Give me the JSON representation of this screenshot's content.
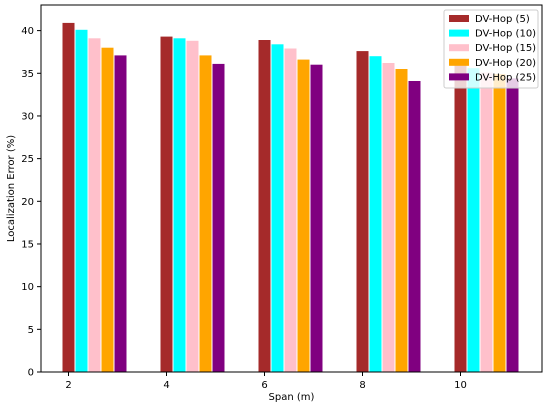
{
  "chart_data": {
    "type": "bar",
    "xlabel": "Span (m)",
    "ylabel": "Localization Error (%)",
    "categories": [
      "2",
      "4",
      "6",
      "8",
      "10"
    ],
    "ylim": [
      0,
      43
    ],
    "yticks": [
      "0",
      "5",
      "10",
      "15",
      "20",
      "25",
      "30",
      "35",
      "40"
    ],
    "grid": false,
    "legend_position": "top-right",
    "series": [
      {
        "name": "DV-Hop (5)",
        "color": "#a52a2a",
        "values": [
          40.9,
          39.3,
          38.9,
          37.6,
          36.2
        ]
      },
      {
        "name": "DV-Hop (10)",
        "color": "#00ffff",
        "values": [
          40.1,
          39.1,
          38.4,
          37.0,
          35.6
        ]
      },
      {
        "name": "DV-Hop (15)",
        "color": "#ffc0cb",
        "values": [
          39.1,
          38.8,
          37.9,
          36.2,
          35.1
        ]
      },
      {
        "name": "DV-Hop (20)",
        "color": "#ffa500",
        "values": [
          38.0,
          37.1,
          36.6,
          35.5,
          34.9
        ]
      },
      {
        "name": "DV-Hop (25)",
        "color": "#800080",
        "values": [
          37.1,
          36.1,
          36.0,
          34.1,
          34.4
        ]
      }
    ]
  }
}
